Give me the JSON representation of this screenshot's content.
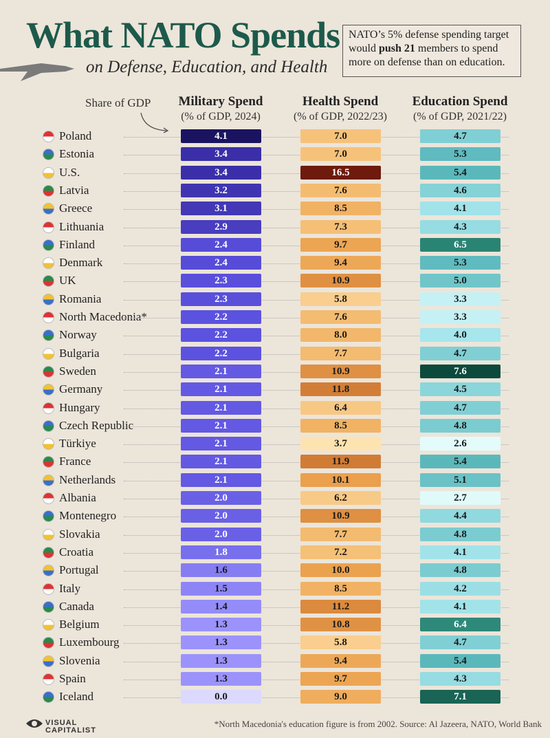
{
  "header": {
    "title": "What NATO Spends",
    "subtitle": "on Defense, Education, and Health"
  },
  "callout": {
    "before": "NATO’s 5% defense spending target would",
    "bold": "push 21",
    "after": "members to spend more on defense than on education."
  },
  "share_label": "Share of GDP",
  "table": {
    "columns": [
      {
        "title": "Military Spend",
        "subtitle": "(% of GDP, 2024)"
      },
      {
        "title": "Health Spend",
        "subtitle": "(% of GDP, 2022/23)"
      },
      {
        "title": "Education Spend",
        "subtitle": "(% of GDP, 2021/22)"
      }
    ],
    "rows": [
      {
        "country": "Poland",
        "values": [
          "4.1",
          "7.0",
          "4.7"
        ]
      },
      {
        "country": "Estonia",
        "values": [
          "3.4",
          "7.0",
          "5.3"
        ]
      },
      {
        "country": "U.S.",
        "values": [
          "3.4",
          "16.5",
          "5.4"
        ]
      },
      {
        "country": "Latvia",
        "values": [
          "3.2",
          "7.6",
          "4.6"
        ]
      },
      {
        "country": "Greece",
        "values": [
          "3.1",
          "8.5",
          "4.1"
        ]
      },
      {
        "country": "Lithuania",
        "values": [
          "2.9",
          "7.3",
          "4.3"
        ]
      },
      {
        "country": "Finland",
        "values": [
          "2.4",
          "9.7",
          "6.5"
        ]
      },
      {
        "country": "Denmark",
        "values": [
          "2.4",
          "9.4",
          "5.3"
        ]
      },
      {
        "country": "UK",
        "values": [
          "2.3",
          "10.9",
          "5.0"
        ]
      },
      {
        "country": "Romania",
        "values": [
          "2.3",
          "5.8",
          "3.3"
        ]
      },
      {
        "country": "North Macedonia*",
        "values": [
          "2.2",
          "7.6",
          "3.3"
        ]
      },
      {
        "country": "Norway",
        "values": [
          "2.2",
          "8.0",
          "4.0"
        ]
      },
      {
        "country": "Bulgaria",
        "values": [
          "2.2",
          "7.7",
          "4.7"
        ]
      },
      {
        "country": "Sweden",
        "values": [
          "2.1",
          "10.9",
          "7.6"
        ]
      },
      {
        "country": "Germany",
        "values": [
          "2.1",
          "11.8",
          "4.5"
        ]
      },
      {
        "country": "Hungary",
        "values": [
          "2.1",
          "6.4",
          "4.7"
        ]
      },
      {
        "country": "Czech Republic",
        "values": [
          "2.1",
          "8.5",
          "4.8"
        ]
      },
      {
        "country": "Türkiye",
        "values": [
          "2.1",
          "3.7",
          "2.6"
        ]
      },
      {
        "country": "France",
        "values": [
          "2.1",
          "11.9",
          "5.4"
        ]
      },
      {
        "country": "Netherlands",
        "values": [
          "2.1",
          "10.1",
          "5.1"
        ]
      },
      {
        "country": "Albania",
        "values": [
          "2.0",
          "6.2",
          "2.7"
        ]
      },
      {
        "country": "Montenegro",
        "values": [
          "2.0",
          "10.9",
          "4.4"
        ]
      },
      {
        "country": "Slovakia",
        "values": [
          "2.0",
          "7.7",
          "4.8"
        ]
      },
      {
        "country": "Croatia",
        "values": [
          "1.8",
          "7.2",
          "4.1"
        ]
      },
      {
        "country": "Portugal",
        "values": [
          "1.6",
          "10.0",
          "4.8"
        ]
      },
      {
        "country": "Italy",
        "values": [
          "1.5",
          "8.5",
          "4.2"
        ]
      },
      {
        "country": "Canada",
        "values": [
          "1.4",
          "11.2",
          "4.1"
        ]
      },
      {
        "country": "Belgium",
        "values": [
          "1.3",
          "10.8",
          "6.4"
        ]
      },
      {
        "country": "Luxembourg",
        "values": [
          "1.3",
          "5.8",
          "4.7"
        ]
      },
      {
        "country": "Slovenia",
        "values": [
          "1.3",
          "9.4",
          "5.4"
        ]
      },
      {
        "country": "Spain",
        "values": [
          "1.3",
          "9.7",
          "4.3"
        ]
      },
      {
        "country": "Iceland",
        "values": [
          "0.0",
          "9.0",
          "7.1"
        ]
      }
    ]
  },
  "footer": {
    "logo": "VISUAL CAPITALIST",
    "note": "*North Macedonia's education figure is from 2002. Source: Al Jazeera, NATO, World Bank"
  }
}
